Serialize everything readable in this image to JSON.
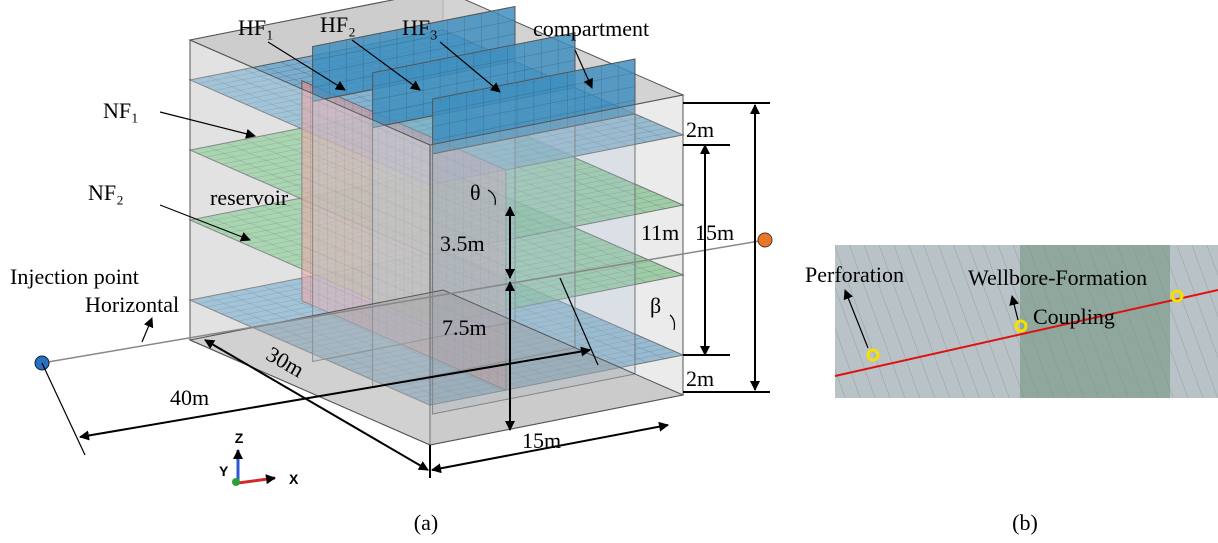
{
  "panel_a": {
    "hydraulic_fractures": [
      "HF₁",
      "HF₂",
      "HF₃"
    ],
    "compartment": "compartment",
    "natural_fractures": [
      "NF₁",
      "NF₂"
    ],
    "reservoir": "reservoir",
    "injection_point": "Injection point",
    "well": "Horizontal",
    "dimensions": {
      "length": "40m",
      "depth": "30m",
      "width": "15m",
      "top": "2m",
      "bottom": "2m",
      "middle": "11m",
      "height": "15m",
      "upper": "3.5m",
      "lower": "7.5m"
    },
    "angles": [
      "θ",
      "β"
    ],
    "axes": [
      "Z",
      "Y",
      "X"
    ],
    "caption": "(a)"
  },
  "panel_b": {
    "labels": [
      "Perforation",
      "Wellbore-Formation",
      "Coupling"
    ],
    "caption": "(b)"
  }
}
